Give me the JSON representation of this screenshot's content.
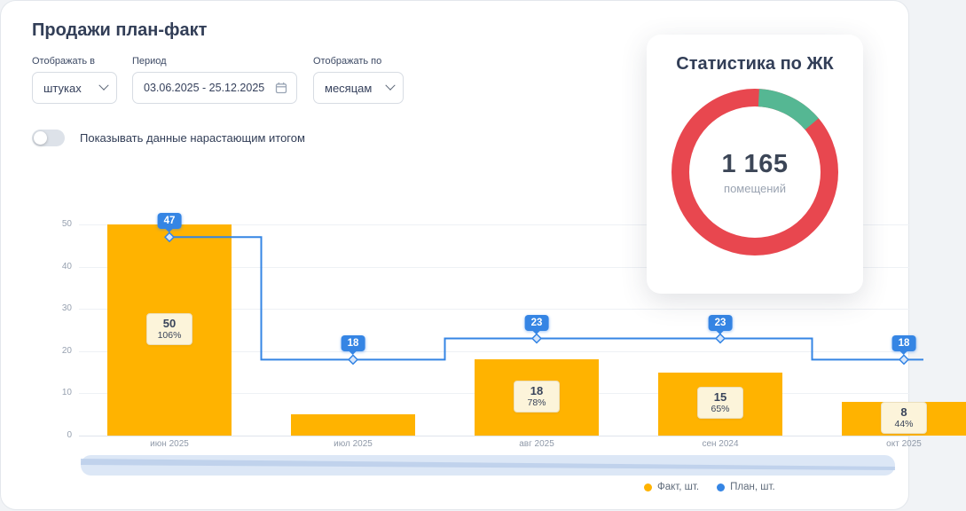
{
  "page": {
    "title": "Продажи план-факт"
  },
  "filters": {
    "display_in": {
      "label": "Отображать в",
      "value": "штуках"
    },
    "period": {
      "label": "Период",
      "value": "03.06.2025 - 25.12.2025"
    },
    "display_by": {
      "label": "Отображать по",
      "value": "месяцам"
    }
  },
  "toggle": {
    "label": "Показывать данные нарастающим итогом",
    "state": "off"
  },
  "stats_card": {
    "title": "Статистика по ЖК",
    "value": "1 165",
    "unit": "помещений",
    "donut": {
      "green_pct": 13,
      "red_color": "#e8474f",
      "green_color": "#55b793"
    }
  },
  "chart_data": {
    "type": "bar",
    "categories": [
      "июн 2025",
      "июл 2025",
      "авг 2025",
      "сен 2024",
      "окт 2025"
    ],
    "series": [
      {
        "name": "Факт, шт.",
        "type": "bar",
        "color": "#ffb300",
        "values": [
          50,
          5,
          18,
          15,
          8
        ]
      },
      {
        "name": "План, шт.",
        "type": "step-line",
        "color": "#3585e4",
        "values": [
          47,
          18,
          23,
          23,
          18
        ]
      }
    ],
    "bar_labels": [
      {
        "value": "50",
        "pct": "106%"
      },
      null,
      {
        "value": "18",
        "pct": "78%"
      },
      {
        "value": "15",
        "pct": "65%"
      },
      {
        "value": "8",
        "pct": "44%"
      }
    ],
    "ylim": [
      0,
      50
    ],
    "yticks": [
      0,
      10,
      20,
      30,
      40,
      50
    ],
    "legend_position": "bottom",
    "grid": true
  },
  "legend": [
    {
      "label": "Факт, шт.",
      "color": "#ffb300"
    },
    {
      "label": "План, шт.",
      "color": "#3585e4"
    }
  ]
}
